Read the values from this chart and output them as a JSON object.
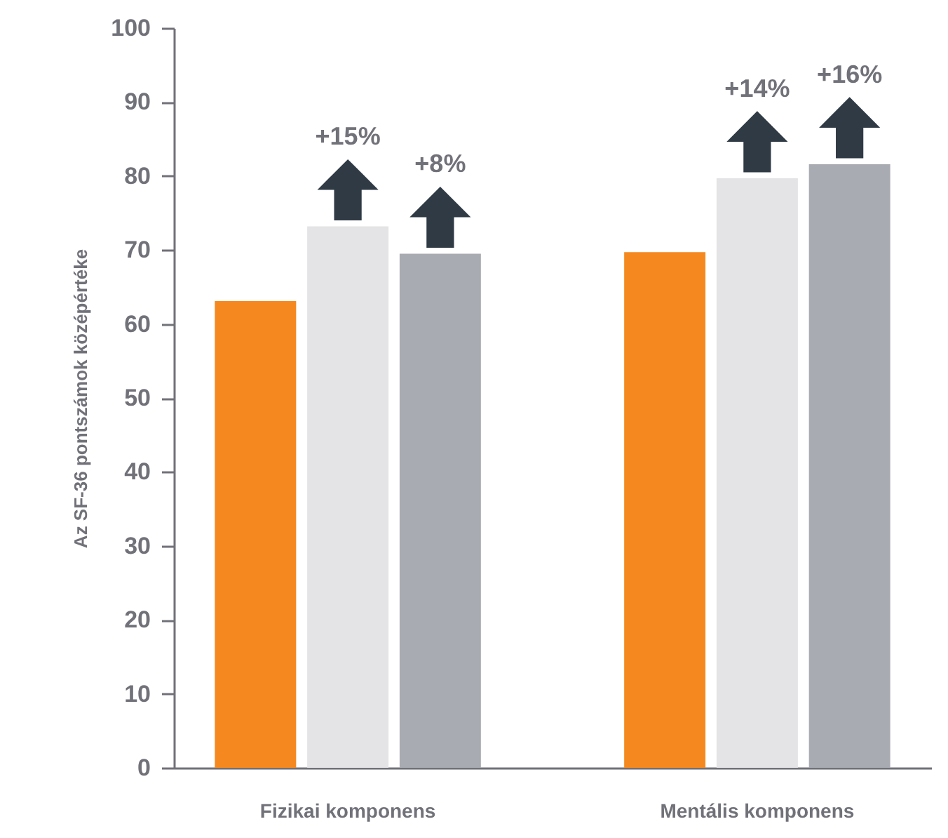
{
  "chart_data": {
    "type": "bar",
    "ylabel": "Az SF-36 pontszámok középértéke",
    "categories": [
      "Fizikai komponens",
      "Mentális komponens"
    ],
    "series": [
      {
        "color": "#f5891f",
        "values": [
          63.1,
          69.7
        ]
      },
      {
        "color": "#e4e4e6",
        "values": [
          73.2,
          79.7
        ]
      },
      {
        "color": "#a9abb2",
        "values": [
          69.5,
          81.6
        ]
      }
    ],
    "annotations": [
      "+15%",
      "+8%",
      "+14%",
      "+16%"
    ],
    "ylim": [
      0,
      100
    ],
    "yticks": [
      0,
      10,
      20,
      30,
      40,
      50,
      60,
      70,
      80,
      90,
      100
    ],
    "grid": false
  }
}
